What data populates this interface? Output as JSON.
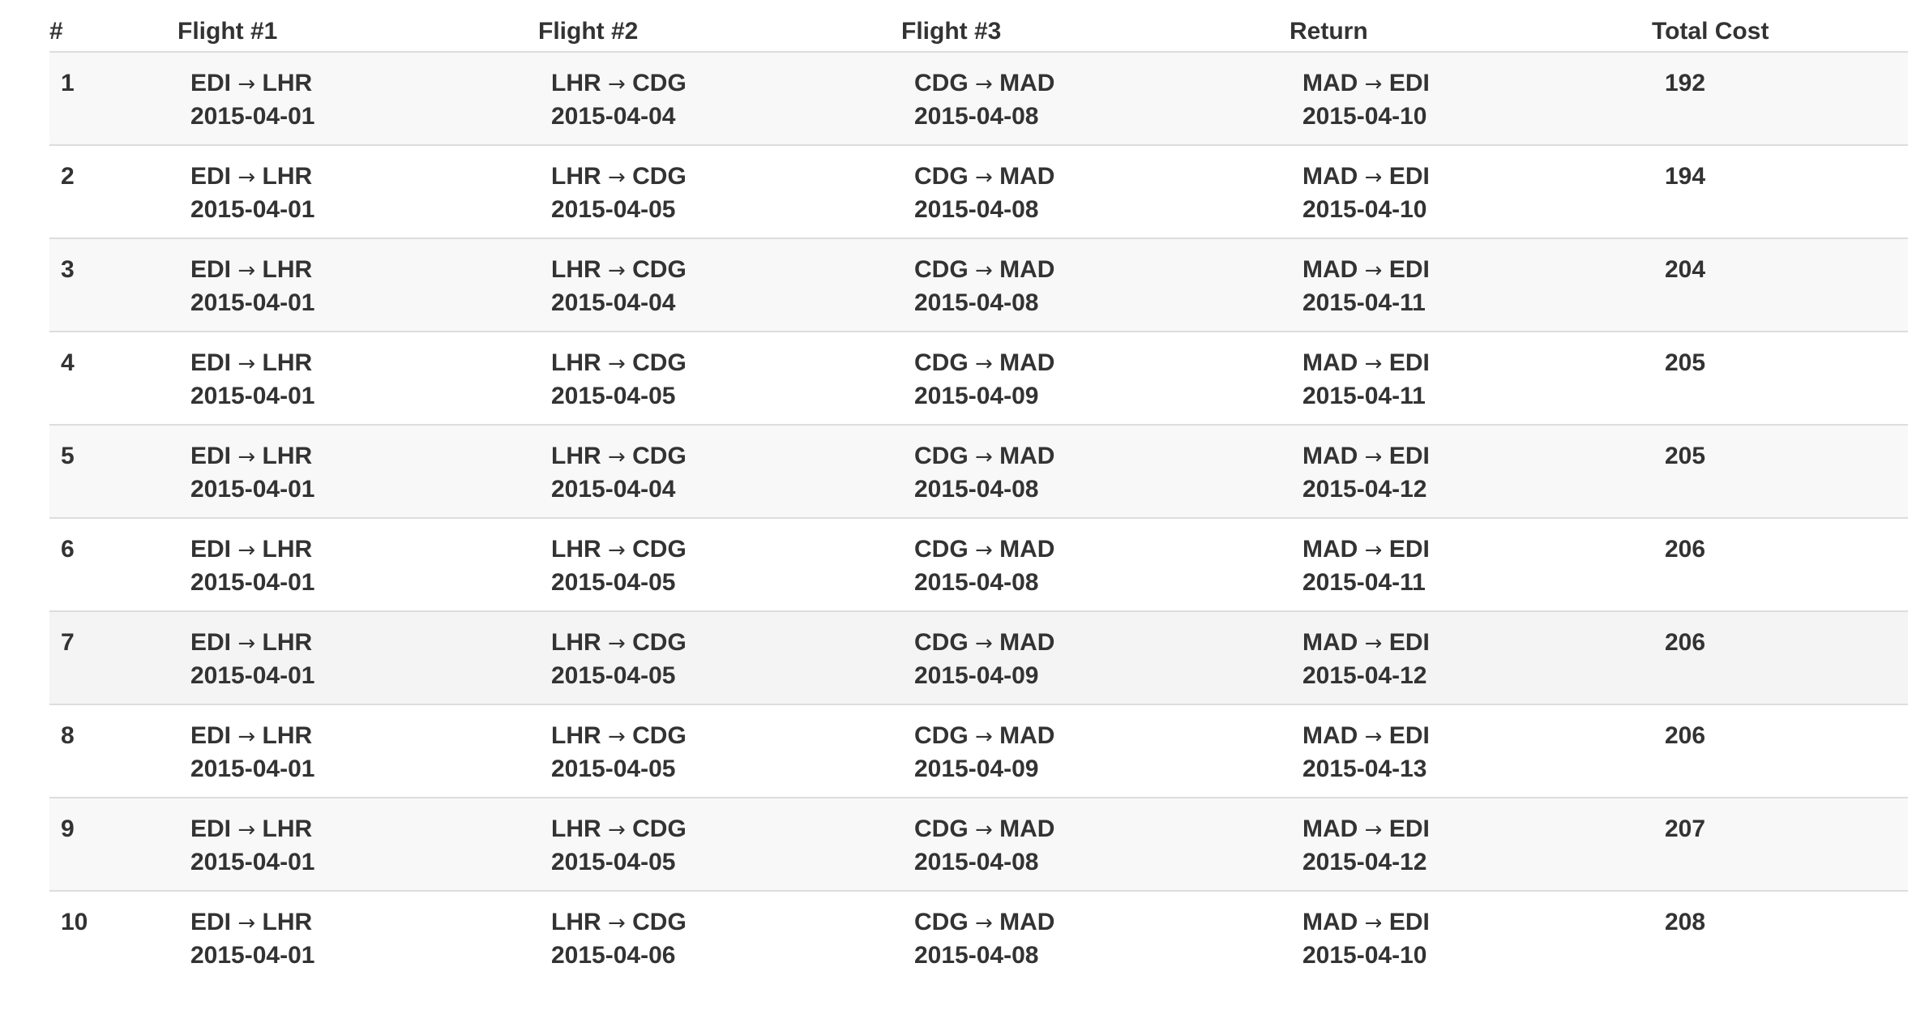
{
  "headers": {
    "num": "#",
    "flight1": "Flight #1",
    "flight2": "Flight #2",
    "flight3": "Flight #3",
    "return": "Return",
    "total_cost": "Total Cost"
  },
  "arrow": "→",
  "rows": [
    {
      "num": "1",
      "f1": {
        "from": "EDI",
        "to": "LHR",
        "date": "2015-04-01"
      },
      "f2": {
        "from": "LHR",
        "to": "CDG",
        "date": "2015-04-04"
      },
      "f3": {
        "from": "CDG",
        "to": "MAD",
        "date": "2015-04-08"
      },
      "ret": {
        "from": "MAD",
        "to": "EDI",
        "date": "2015-04-10"
      },
      "cost": "192"
    },
    {
      "num": "2",
      "f1": {
        "from": "EDI",
        "to": "LHR",
        "date": "2015-04-01"
      },
      "f2": {
        "from": "LHR",
        "to": "CDG",
        "date": "2015-04-05"
      },
      "f3": {
        "from": "CDG",
        "to": "MAD",
        "date": "2015-04-08"
      },
      "ret": {
        "from": "MAD",
        "to": "EDI",
        "date": "2015-04-10"
      },
      "cost": "194"
    },
    {
      "num": "3",
      "f1": {
        "from": "EDI",
        "to": "LHR",
        "date": "2015-04-01"
      },
      "f2": {
        "from": "LHR",
        "to": "CDG",
        "date": "2015-04-04"
      },
      "f3": {
        "from": "CDG",
        "to": "MAD",
        "date": "2015-04-08"
      },
      "ret": {
        "from": "MAD",
        "to": "EDI",
        "date": "2015-04-11"
      },
      "cost": "204"
    },
    {
      "num": "4",
      "f1": {
        "from": "EDI",
        "to": "LHR",
        "date": "2015-04-01"
      },
      "f2": {
        "from": "LHR",
        "to": "CDG",
        "date": "2015-04-05"
      },
      "f3": {
        "from": "CDG",
        "to": "MAD",
        "date": "2015-04-09"
      },
      "ret": {
        "from": "MAD",
        "to": "EDI",
        "date": "2015-04-11"
      },
      "cost": "205"
    },
    {
      "num": "5",
      "f1": {
        "from": "EDI",
        "to": "LHR",
        "date": "2015-04-01"
      },
      "f2": {
        "from": "LHR",
        "to": "CDG",
        "date": "2015-04-04"
      },
      "f3": {
        "from": "CDG",
        "to": "MAD",
        "date": "2015-04-08"
      },
      "ret": {
        "from": "MAD",
        "to": "EDI",
        "date": "2015-04-12"
      },
      "cost": "205"
    },
    {
      "num": "6",
      "f1": {
        "from": "EDI",
        "to": "LHR",
        "date": "2015-04-01"
      },
      "f2": {
        "from": "LHR",
        "to": "CDG",
        "date": "2015-04-05"
      },
      "f3": {
        "from": "CDG",
        "to": "MAD",
        "date": "2015-04-08"
      },
      "ret": {
        "from": "MAD",
        "to": "EDI",
        "date": "2015-04-11"
      },
      "cost": "206"
    },
    {
      "num": "7",
      "f1": {
        "from": "EDI",
        "to": "LHR",
        "date": "2015-04-01"
      },
      "f2": {
        "from": "LHR",
        "to": "CDG",
        "date": "2015-04-05"
      },
      "f3": {
        "from": "CDG",
        "to": "MAD",
        "date": "2015-04-09"
      },
      "ret": {
        "from": "MAD",
        "to": "EDI",
        "date": "2015-04-12"
      },
      "cost": "206"
    },
    {
      "num": "8",
      "f1": {
        "from": "EDI",
        "to": "LHR",
        "date": "2015-04-01"
      },
      "f2": {
        "from": "LHR",
        "to": "CDG",
        "date": "2015-04-05"
      },
      "f3": {
        "from": "CDG",
        "to": "MAD",
        "date": "2015-04-09"
      },
      "ret": {
        "from": "MAD",
        "to": "EDI",
        "date": "2015-04-13"
      },
      "cost": "206"
    },
    {
      "num": "9",
      "f1": {
        "from": "EDI",
        "to": "LHR",
        "date": "2015-04-01"
      },
      "f2": {
        "from": "LHR",
        "to": "CDG",
        "date": "2015-04-05"
      },
      "f3": {
        "from": "CDG",
        "to": "MAD",
        "date": "2015-04-08"
      },
      "ret": {
        "from": "MAD",
        "to": "EDI",
        "date": "2015-04-12"
      },
      "cost": "207"
    },
    {
      "num": "10",
      "f1": {
        "from": "EDI",
        "to": "LHR",
        "date": "2015-04-01"
      },
      "f2": {
        "from": "LHR",
        "to": "CDG",
        "date": "2015-04-06"
      },
      "f3": {
        "from": "CDG",
        "to": "MAD",
        "date": "2015-04-08"
      },
      "ret": {
        "from": "MAD",
        "to": "EDI",
        "date": "2015-04-10"
      },
      "cost": "208"
    }
  ],
  "colors": {
    "text": "#333333",
    "stripe": "#f8f8f8",
    "hover_row": "#f4f4f4",
    "border": "#dddddd"
  }
}
